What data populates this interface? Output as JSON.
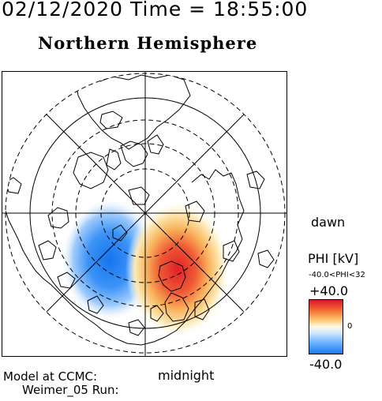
{
  "header": {
    "timestamp": "02/12/2020 Time = 18:55:00",
    "title": "Northern Hemisphere"
  },
  "map": {
    "direction_labels": {
      "dawn": "dawn",
      "midnight": "midnight"
    },
    "colors": {
      "positive": "#e0282d",
      "negative": "#2a86f4",
      "neutral": "#ffffff",
      "lines": "#000000"
    }
  },
  "legend": {
    "title": "PHI [kV]",
    "range_text": "-40.0<PHI<32",
    "max_label": "+40.0",
    "zero_label": "0",
    "min_label": "-40.0"
  },
  "footer": {
    "line1": "Model at CCMC:",
    "line2": "Weimer_05 Run:"
  }
}
